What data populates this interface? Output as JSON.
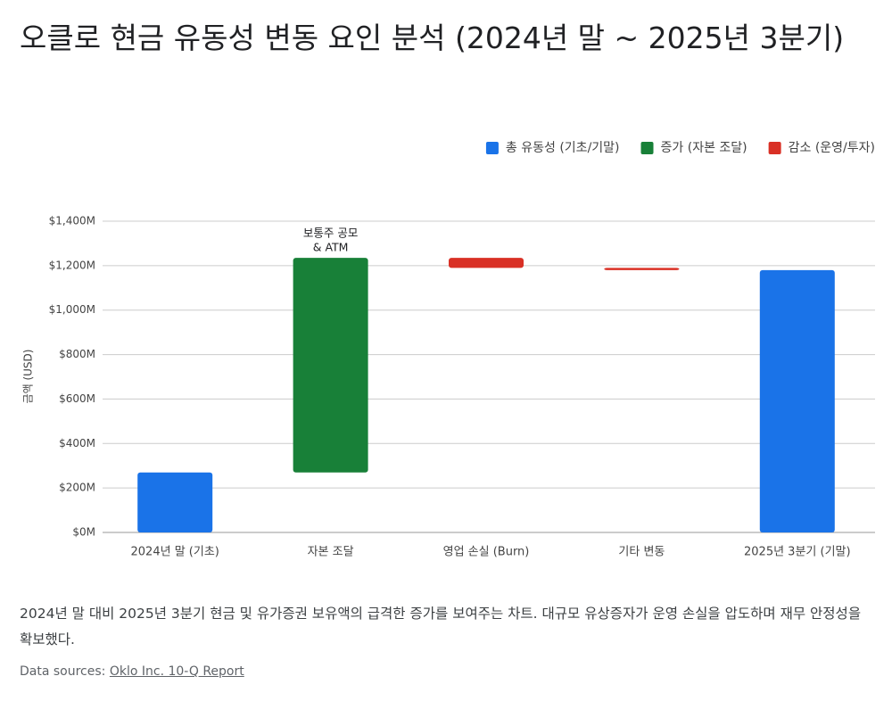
{
  "chart_data": {
    "type": "waterfall",
    "title": "오클로 현금 유동성 변동 요인 분석 (2024년 말 ~ 2025년 3분기)",
    "y_label": "금액 (USD)",
    "categories": [
      "2024년 말 (기초)",
      "자본 조달",
      "영업 손실 (Burn)",
      "기타 변동",
      "2025년 3분기 (기말)"
    ],
    "values": [
      270,
      965,
      -45,
      -10,
      1180
    ],
    "measure": [
      "absolute",
      "relative",
      "relative",
      "relative",
      "absolute"
    ],
    "colors": [
      "#1a73e8",
      "#188038",
      "#d93025",
      "#d93025",
      "#1a73e8"
    ],
    "legend": [
      {
        "name": "총 유동성 (기초/기말)",
        "color": "#1a73e8"
      },
      {
        "name": "증가 (자본 조달)",
        "color": "#188038"
      },
      {
        "name": "감소 (운영/투자)",
        "color": "#d93025"
      }
    ],
    "annotation": {
      "category": "자본 조달",
      "lines": [
        "보통주 공모",
        "& ATM"
      ]
    },
    "ylim": [
      0,
      1400
    ],
    "yticks": [
      {
        "value": 0,
        "label": "$0M"
      },
      {
        "value": 200,
        "label": "$200M"
      },
      {
        "value": 400,
        "label": "$400M"
      },
      {
        "value": 600,
        "label": "$600M"
      },
      {
        "value": 800,
        "label": "$800M"
      },
      {
        "value": 1000,
        "label": "$1,000M"
      },
      {
        "value": 1200,
        "label": "$1,200M"
      },
      {
        "value": 1400,
        "label": "$1,400M"
      }
    ],
    "grid": true
  },
  "description": "2024년 말 대비 2025년 3분기 현금 및 유가증권 보유액의 급격한 증가를 보여주는 차트. 대규모 유상증자가 운영 손실을 압도하며 재무 안정성을 확보했다.",
  "source": {
    "prefix": "Data sources:",
    "link": "Oklo Inc. 10-Q Report"
  }
}
